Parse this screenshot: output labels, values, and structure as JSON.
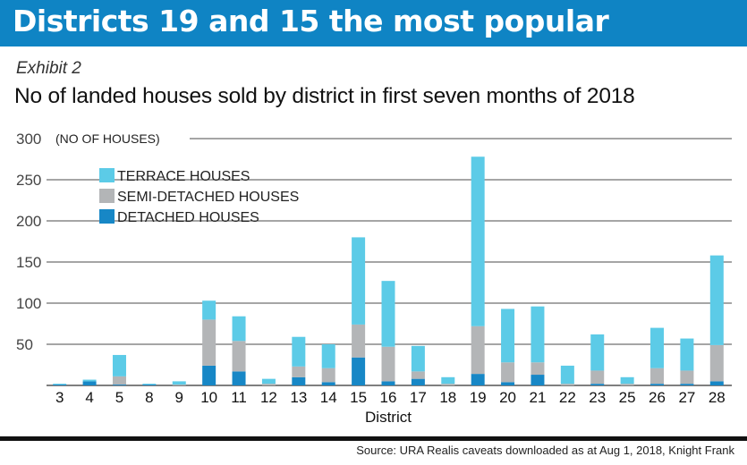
{
  "banner": {
    "title": "Districts 19 and 15 the most popular"
  },
  "exhibit_label": "Exhibit 2",
  "source": "Source: URA Realis caveats downloaded as at Aug 1, 2018, Knight Frank",
  "colors": {
    "banner": "#0f84c4",
    "terrace": "#5ccbe7",
    "semi": "#b3b5b7",
    "detached": "#1787c6",
    "grid": "#4b4b4b"
  },
  "chart_data": {
    "type": "bar",
    "stacked": true,
    "title": "No of landed houses sold by district in first seven months of 2018",
    "ylabel": "(NO OF HOUSES)",
    "xlabel": "District",
    "ylim": [
      0,
      300
    ],
    "yticks": [
      50,
      100,
      150,
      200,
      250,
      300
    ],
    "grid": true,
    "legend_position": "upper-left",
    "categories": [
      "3",
      "4",
      "5",
      "8",
      "9",
      "10",
      "11",
      "12",
      "13",
      "14",
      "15",
      "16",
      "17",
      "18",
      "19",
      "20",
      "21",
      "22",
      "23",
      "25",
      "26",
      "27",
      "28"
    ],
    "series": [
      {
        "name": "DETACHED HOUSES",
        "color": "#1787c6",
        "values": [
          1,
          5,
          1,
          1,
          0,
          24,
          17,
          0,
          10,
          4,
          34,
          5,
          8,
          0,
          14,
          4,
          13,
          0,
          2,
          0,
          2,
          2,
          5
        ]
      },
      {
        "name": "SEMI-DETACHED HOUSES",
        "color": "#b3b5b7",
        "values": [
          0,
          0,
          10,
          0,
          1,
          56,
          37,
          2,
          13,
          17,
          40,
          42,
          9,
          2,
          58,
          24,
          15,
          2,
          16,
          2,
          19,
          16,
          44
        ]
      },
      {
        "name": "TERRACE HOUSES",
        "color": "#5ccbe7",
        "values": [
          1,
          2,
          26,
          1,
          4,
          23,
          30,
          6,
          36,
          29,
          106,
          80,
          31,
          8,
          206,
          65,
          68,
          22,
          44,
          8,
          49,
          39,
          109
        ]
      }
    ],
    "legend_order": [
      "TERRACE HOUSES",
      "SEMI-DETACHED HOUSES",
      "DETACHED HOUSES"
    ]
  }
}
